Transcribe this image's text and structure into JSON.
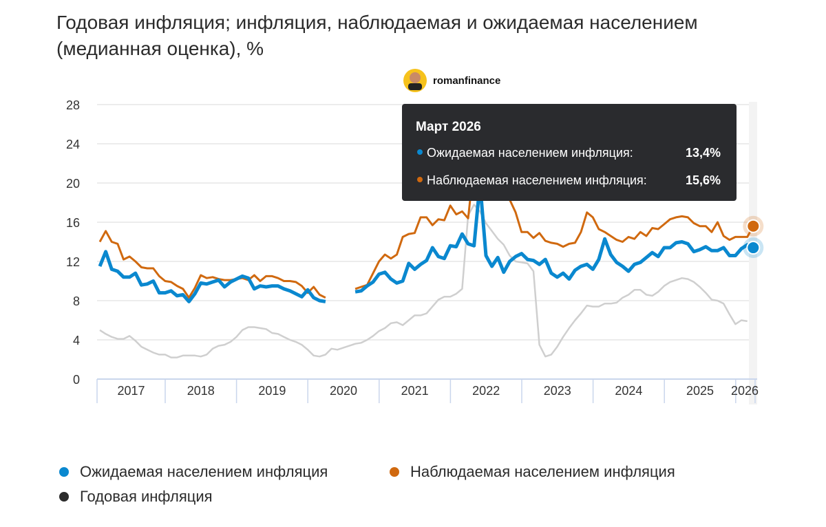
{
  "title": "Годовая инфляция; инфляция, наблюдаемая и ожидаемая населением (медианная оценка), %",
  "watermark": {
    "text": "romanfinance"
  },
  "tooltip": {
    "header": "Март 2026",
    "rows": [
      {
        "label": "Ожидаемая населением инфляция:",
        "value": "13,4%",
        "color": "#0a88cf"
      },
      {
        "label": "Наблюдаемая населением инфляция:",
        "value": "15,6%",
        "color": "#d0690f"
      }
    ]
  },
  "legend": [
    {
      "label": "Ожидаемая населением инфляция",
      "color": "#0a88cf"
    },
    {
      "label": "Наблюдаемая населением инфляция",
      "color": "#d0690f"
    },
    {
      "label": "Годовая инфляция",
      "color": "#2b2b2b"
    }
  ],
  "chart_data": {
    "type": "line",
    "title": "Годовая инфляция; инфляция, наблюдаемая и ожидаемая населением (медианная оценка), %",
    "x_start": "2017-01",
    "x_end": "2026-03",
    "x_frequency": "monthly",
    "ylim": [
      0,
      28
    ],
    "yticks": [
      0,
      4,
      8,
      12,
      16,
      20,
      24,
      28
    ],
    "xtick_labels": [
      "2017",
      "2018",
      "2019",
      "2020",
      "2021",
      "2022",
      "2023",
      "2024",
      "2025",
      "2026"
    ],
    "grid": true,
    "legend_position": "bottom",
    "series": [
      {
        "name": "Ожидаемая населением инфляция",
        "color": "#0a88cf",
        "values": [
          11.5,
          13.0,
          11.2,
          11.0,
          10.4,
          10.4,
          10.8,
          9.6,
          9.7,
          10.0,
          8.8,
          8.8,
          9.0,
          8.5,
          8.6,
          7.9,
          8.7,
          9.8,
          9.7,
          9.9,
          10.1,
          9.4,
          9.9,
          10.2,
          10.5,
          10.3,
          9.2,
          9.5,
          9.4,
          9.5,
          9.5,
          9.2,
          9.0,
          8.7,
          8.4,
          9.1,
          8.3,
          8.0,
          7.9,
          null,
          null,
          null,
          null,
          8.9,
          9.0,
          9.5,
          9.9,
          10.7,
          10.9,
          10.2,
          9.8,
          10.0,
          11.8,
          11.2,
          11.7,
          12.1,
          13.4,
          12.5,
          12.3,
          13.6,
          13.5,
          14.8,
          13.8,
          13.6,
          20.0,
          12.6,
          11.5,
          12.4,
          10.9,
          12.0,
          12.5,
          12.8,
          12.2,
          12.1,
          11.7,
          12.2,
          10.8,
          10.4,
          10.8,
          10.2,
          11.1,
          11.5,
          11.7,
          11.2,
          12.2,
          14.3,
          12.7,
          11.9,
          11.5,
          11.0,
          11.7,
          11.9,
          12.4,
          12.9,
          12.5,
          13.4,
          13.4,
          13.9,
          14.0,
          13.8,
          13.0,
          13.2,
          13.5,
          13.1,
          13.1,
          13.4,
          12.6,
          12.6,
          13.3,
          13.7,
          13.4
        ]
      },
      {
        "name": "Наблюдаемая населением инфляция",
        "color": "#d0690f",
        "values": [
          14.0,
          15.1,
          14.0,
          13.8,
          12.2,
          12.5,
          12.0,
          11.4,
          11.3,
          11.3,
          10.5,
          10.0,
          9.9,
          9.5,
          9.2,
          8.3,
          9.3,
          10.6,
          10.3,
          10.4,
          10.2,
          10.1,
          10.1,
          10.2,
          10.3,
          10.1,
          10.6,
          10.0,
          10.5,
          10.5,
          10.3,
          10.0,
          10.0,
          9.9,
          9.5,
          8.8,
          9.4,
          8.6,
          8.3,
          null,
          null,
          null,
          null,
          9.2,
          9.4,
          9.6,
          10.8,
          12.0,
          12.7,
          12.3,
          12.7,
          14.5,
          14.8,
          14.9,
          16.5,
          16.5,
          15.7,
          16.3,
          16.2,
          17.7,
          16.8,
          17.1,
          16.4,
          22.0,
          21.0,
          20.0,
          19.5,
          19.0,
          18.5,
          18.3,
          17.0,
          15.0,
          15.0,
          14.4,
          14.9,
          14.1,
          13.9,
          13.8,
          13.5,
          13.8,
          13.9,
          15.0,
          17.0,
          16.5,
          15.3,
          15.0,
          14.6,
          14.2,
          14.0,
          14.5,
          14.3,
          15.0,
          14.6,
          15.4,
          15.3,
          15.8,
          16.3,
          16.5,
          16.6,
          16.5,
          15.9,
          15.6,
          15.6,
          15.0,
          16.0,
          14.6,
          14.2,
          14.5,
          14.5,
          14.5,
          15.6
        ]
      },
      {
        "name": "Годовая инфляция",
        "color": "#cfcfcf",
        "values": [
          5.0,
          4.6,
          4.3,
          4.1,
          4.1,
          4.4,
          3.9,
          3.3,
          3.0,
          2.7,
          2.5,
          2.5,
          2.2,
          2.2,
          2.4,
          2.4,
          2.4,
          2.3,
          2.5,
          3.1,
          3.4,
          3.5,
          3.8,
          4.3,
          5.0,
          5.3,
          5.3,
          5.2,
          5.1,
          4.7,
          4.6,
          4.3,
          4.0,
          3.8,
          3.5,
          3.0,
          2.4,
          2.3,
          2.5,
          3.1,
          3.0,
          3.2,
          3.4,
          3.6,
          3.7,
          4.0,
          4.4,
          4.9,
          5.2,
          5.7,
          5.8,
          5.5,
          6.0,
          6.5,
          6.5,
          6.7,
          7.4,
          8.1,
          8.4,
          8.4,
          8.7,
          9.2,
          16.7,
          17.8,
          17.1,
          15.9,
          15.1,
          14.3,
          13.7,
          12.6,
          12.0,
          11.9,
          11.8,
          11.0,
          3.5,
          2.3,
          2.5,
          3.3,
          4.3,
          5.2,
          6.0,
          6.7,
          7.5,
          7.4,
          7.4,
          7.7,
          7.7,
          7.8,
          8.3,
          8.6,
          9.1,
          9.1,
          8.6,
          8.5,
          8.9,
          9.5,
          9.9,
          10.1,
          10.3,
          10.2,
          9.9,
          9.4,
          8.8,
          8.1,
          8.0,
          7.7,
          6.6,
          5.6,
          6.0,
          5.9,
          null
        ]
      }
    ]
  }
}
